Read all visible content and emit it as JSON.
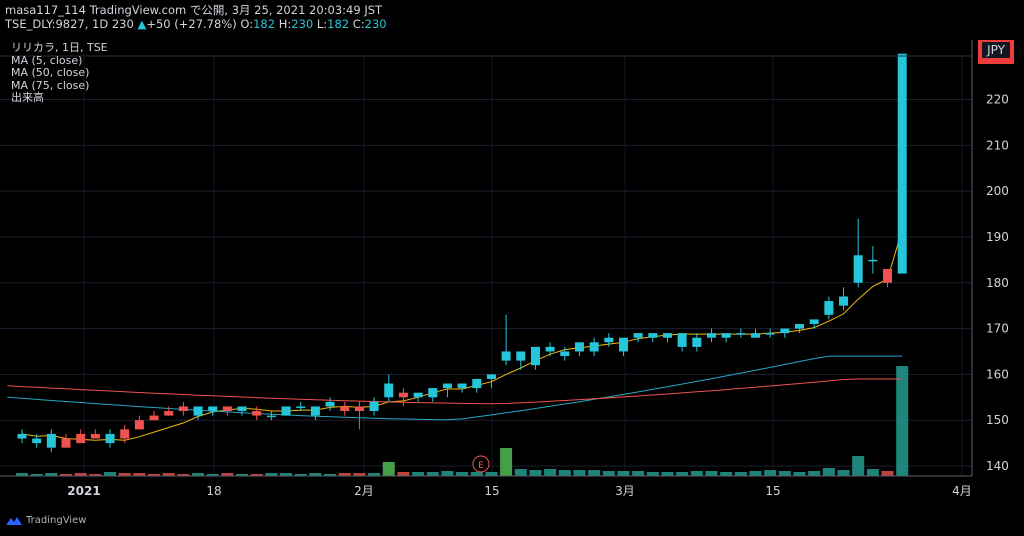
{
  "header": {
    "line1": "masa117_114 TradingView.com で公開, 3月 25, 2021 20:03:49 JST",
    "symbol": "TSE_DLY:9827, 1D",
    "last": "230",
    "change_arrow": "▲",
    "change": "+50 (+27.78%)",
    "o_label": "O:",
    "o": "182",
    "h_label": "H:",
    "h": "230",
    "l_label": "L:",
    "l": "182",
    "c_label": "C:",
    "c": "230"
  },
  "legend": {
    "title": "リリカラ, 1日, TSE",
    "ma5": "MA (5, close)",
    "ma50": "MA (50, close)",
    "ma75": "MA (75, close)",
    "volume": "出来高"
  },
  "currency": "JPY",
  "footer": {
    "brand": "TradingView"
  },
  "colors": {
    "up": "#26c6da",
    "down": "#ef5350",
    "ma5": "#f0b90b",
    "ma50": "#26a8c4",
    "ma75": "#ef5350",
    "vol_up": "#4caf50",
    "vol_down": "#ef5350"
  },
  "chart_data": {
    "type": "candlestick",
    "y_axis": {
      "ticks": [
        140,
        150,
        160,
        170,
        180,
        190,
        200,
        210,
        220
      ],
      "range": [
        138,
        230
      ]
    },
    "x_axis": {
      "labels": [
        "2021",
        "18",
        "2月",
        "15",
        "3月",
        "15",
        "4月"
      ]
    },
    "earnings_marker": "E",
    "candles": [
      {
        "o": 146,
        "h": 148,
        "l": 145,
        "c": 147
      },
      {
        "o": 145,
        "h": 147,
        "l": 144,
        "c": 146
      },
      {
        "o": 144,
        "h": 148,
        "l": 143,
        "c": 147
      },
      {
        "o": 146,
        "h": 147,
        "l": 144,
        "c": 144
      },
      {
        "o": 147,
        "h": 148,
        "l": 145,
        "c": 145
      },
      {
        "o": 147,
        "h": 148,
        "l": 146,
        "c": 146
      },
      {
        "o": 145,
        "h": 148,
        "l": 144,
        "c": 147
      },
      {
        "o": 148,
        "h": 149,
        "l": 145,
        "c": 146
      },
      {
        "o": 150,
        "h": 151,
        "l": 148,
        "c": 148
      },
      {
        "o": 151,
        "h": 152,
        "l": 150,
        "c": 150
      },
      {
        "o": 152,
        "h": 153,
        "l": 151,
        "c": 151
      },
      {
        "o": 153,
        "h": 154,
        "l": 151,
        "c": 152
      },
      {
        "o": 151,
        "h": 153,
        "l": 150,
        "c": 153
      },
      {
        "o": 152,
        "h": 153,
        "l": 151,
        "c": 153
      },
      {
        "o": 153,
        "h": 153,
        "l": 151,
        "c": 152
      },
      {
        "o": 152,
        "h": 153,
        "l": 151,
        "c": 153
      },
      {
        "o": 152,
        "h": 153,
        "l": 150,
        "c": 151
      },
      {
        "o": 151,
        "h": 152,
        "l": 150,
        "c": 151
      },
      {
        "o": 151,
        "h": 153,
        "l": 151,
        "c": 153
      },
      {
        "o": 153,
        "h": 154,
        "l": 152,
        "c": 153
      },
      {
        "o": 151,
        "h": 153,
        "l": 150,
        "c": 153
      },
      {
        "o": 153,
        "h": 155,
        "l": 152,
        "c": 154
      },
      {
        "o": 153,
        "h": 154,
        "l": 151,
        "c": 152
      },
      {
        "o": 153,
        "h": 154,
        "l": 148,
        "c": 152
      },
      {
        "o": 152,
        "h": 155,
        "l": 151,
        "c": 154
      },
      {
        "o": 155,
        "h": 160,
        "l": 154,
        "c": 158
      },
      {
        "o": 156,
        "h": 157,
        "l": 153,
        "c": 155
      },
      {
        "o": 155,
        "h": 156,
        "l": 154,
        "c": 156
      },
      {
        "o": 155,
        "h": 157,
        "l": 154,
        "c": 157
      },
      {
        "o": 157,
        "h": 158,
        "l": 155,
        "c": 158
      },
      {
        "o": 157,
        "h": 158,
        "l": 156,
        "c": 158
      },
      {
        "o": 157,
        "h": 159,
        "l": 156,
        "c": 159
      },
      {
        "o": 159,
        "h": 160,
        "l": 157,
        "c": 160
      },
      {
        "o": 163,
        "h": 173,
        "l": 162,
        "c": 165
      },
      {
        "o": 163,
        "h": 165,
        "l": 161,
        "c": 165
      },
      {
        "o": 162,
        "h": 166,
        "l": 161,
        "c": 166
      },
      {
        "o": 165,
        "h": 167,
        "l": 164,
        "c": 166
      },
      {
        "o": 164,
        "h": 166,
        "l": 163,
        "c": 165
      },
      {
        "o": 165,
        "h": 167,
        "l": 164,
        "c": 167
      },
      {
        "o": 165,
        "h": 168,
        "l": 164,
        "c": 167
      },
      {
        "o": 167,
        "h": 169,
        "l": 166,
        "c": 168
      },
      {
        "o": 165,
        "h": 168,
        "l": 164,
        "c": 168
      },
      {
        "o": 168,
        "h": 169,
        "l": 167,
        "c": 169
      },
      {
        "o": 168,
        "h": 169,
        "l": 167,
        "c": 169
      },
      {
        "o": 168,
        "h": 169,
        "l": 167,
        "c": 169
      },
      {
        "o": 166,
        "h": 169,
        "l": 165,
        "c": 169
      },
      {
        "o": 166,
        "h": 169,
        "l": 165,
        "c": 168
      },
      {
        "o": 168,
        "h": 170,
        "l": 167,
        "c": 169
      },
      {
        "o": 168,
        "h": 169,
        "l": 167,
        "c": 169
      },
      {
        "o": 169,
        "h": 170,
        "l": 168,
        "c": 169
      },
      {
        "o": 168,
        "h": 170,
        "l": 168,
        "c": 169
      },
      {
        "o": 169,
        "h": 170,
        "l": 168,
        "c": 169
      },
      {
        "o": 169,
        "h": 170,
        "l": 168,
        "c": 170
      },
      {
        "o": 170,
        "h": 171,
        "l": 169,
        "c": 171
      },
      {
        "o": 171,
        "h": 172,
        "l": 170,
        "c": 172
      },
      {
        "o": 173,
        "h": 177,
        "l": 172,
        "c": 176
      },
      {
        "o": 175,
        "h": 179,
        "l": 174,
        "c": 177
      },
      {
        "o": 180,
        "h": 194,
        "l": 179,
        "c": 186
      },
      {
        "o": 185,
        "h": 188,
        "l": 182,
        "c": 185
      },
      {
        "o": 183,
        "h": 183,
        "l": 179,
        "c": 180
      },
      {
        "o": 182,
        "h": 230,
        "l": 182,
        "c": 230
      }
    ],
    "ma5_end": 192,
    "ma50_end": 164,
    "ma75_end": 159
  }
}
